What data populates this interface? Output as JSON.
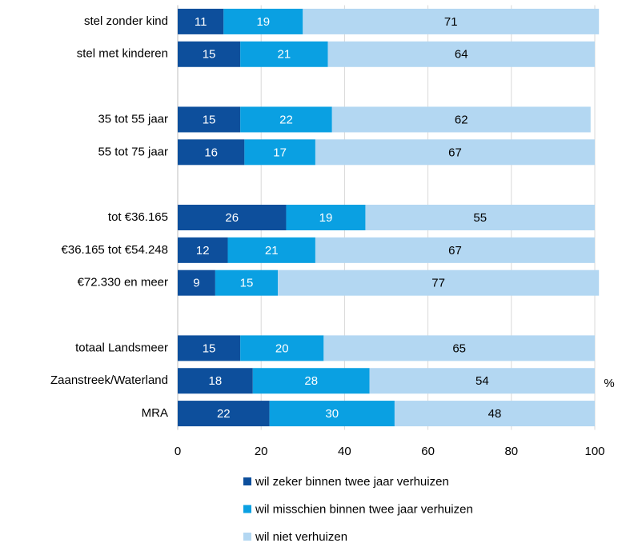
{
  "chart_data": {
    "type": "stacked-barh",
    "categories": [
      "stel zonder kind",
      "stel met kinderen",
      null,
      "35 tot 55 jaar",
      "55 tot 75 jaar",
      null,
      "tot €36.165",
      "€36.165 tot €54.248",
      "€72.330 en meer",
      null,
      "totaal Landsmeer",
      "Zaanstreek/Waterland",
      "MRA"
    ],
    "series": [
      {
        "name": "wil zeker binnen twee jaar verhuizen",
        "color": "#0d4f9c",
        "values": [
          11,
          15,
          null,
          15,
          16,
          null,
          26,
          12,
          9,
          null,
          15,
          18,
          22
        ]
      },
      {
        "name": "wil misschien binnen twee jaar verhuizen",
        "color": "#0aa0e2",
        "values": [
          19,
          21,
          null,
          22,
          17,
          null,
          19,
          21,
          15,
          null,
          20,
          28,
          30
        ]
      },
      {
        "name": "wil niet verhuizen",
        "color": "#b3d7f2",
        "values": [
          71,
          64,
          null,
          62,
          67,
          null,
          55,
          67,
          77,
          null,
          65,
          54,
          48
        ]
      }
    ],
    "xlabel": "%",
    "xlim": [
      0,
      100
    ],
    "xticks": [
      0,
      20,
      40,
      60,
      80,
      100
    ],
    "grid": true,
    "legend": "bottom"
  }
}
